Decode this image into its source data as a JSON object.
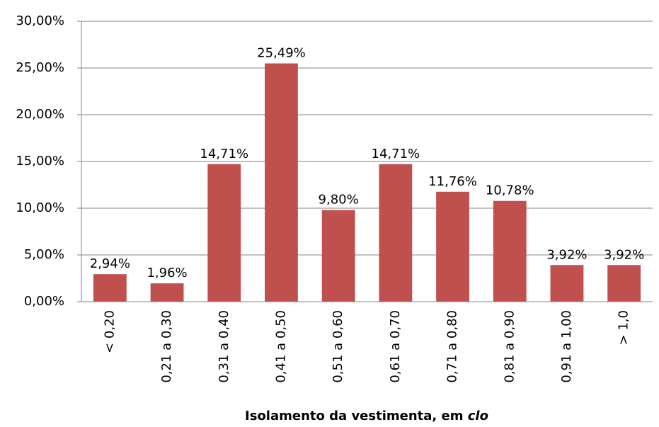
{
  "chart_data": {
    "type": "bar",
    "categories": [
      "< 0,20",
      "0,21 a 0,30",
      "0,31 a 0,40",
      "0,41 a 0,50",
      "0,51 a 0,60",
      "0,61 a 0,70",
      "0,71 a 0,80",
      "0,81 a 0,90",
      "0,91 a 1,00",
      "> 1,0"
    ],
    "values": [
      2.94,
      1.96,
      14.71,
      25.49,
      9.8,
      14.71,
      11.76,
      10.78,
      3.92,
      3.92
    ],
    "value_labels": [
      "2,94%",
      "1,96%",
      "14,71%",
      "25,49%",
      "9,80%",
      "14,71%",
      "11,76%",
      "10,78%",
      "3,92%",
      "3,92%"
    ],
    "color": "#c0504d",
    "xlabel": "Isolamento da vestimenta, em",
    "xlabel_italic": "clo",
    "ylim": [
      0,
      30
    ],
    "yticks": [
      {
        "value": 0,
        "label": "0,00%"
      },
      {
        "value": 5,
        "label": "5,00%"
      },
      {
        "value": 10,
        "label": "10,00%"
      },
      {
        "value": 15,
        "label": "15,00%"
      },
      {
        "value": 20,
        "label": "20,00%"
      },
      {
        "value": 25,
        "label": "25,00%"
      },
      {
        "value": 30,
        "label": "30,00%"
      }
    ],
    "grid": true
  }
}
